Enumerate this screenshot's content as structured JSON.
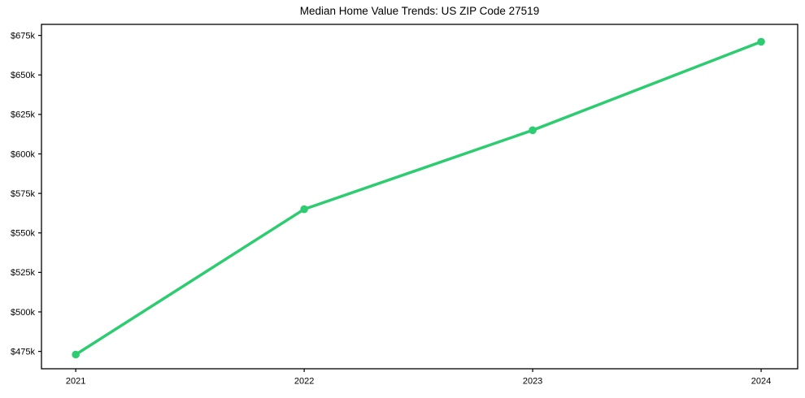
{
  "chart_data": {
    "type": "line",
    "title": "Median Home Value Trends: US ZIP Code 27519",
    "xlabel": "",
    "ylabel": "",
    "x": [
      2021,
      2022,
      2023,
      2024
    ],
    "x_tick_labels": [
      "2021",
      "2022",
      "2023",
      "2024"
    ],
    "values_k": [
      473,
      565,
      615,
      671
    ],
    "y_ticks_k": [
      475,
      500,
      525,
      550,
      575,
      600,
      625,
      650,
      675
    ],
    "y_tick_labels": [
      "$475k",
      "$500k",
      "$525k",
      "$550k",
      "$575k",
      "$600k",
      "$625k",
      "$650k",
      "$675k"
    ],
    "xlim": [
      2020.85,
      2024.16
    ],
    "ylim_k": [
      464,
      682
    ],
    "grid": false,
    "legend": "none",
    "line_color": "#2ecc71",
    "marker": "circle",
    "axis_color": "#000000",
    "background_color": "#ffffff"
  }
}
